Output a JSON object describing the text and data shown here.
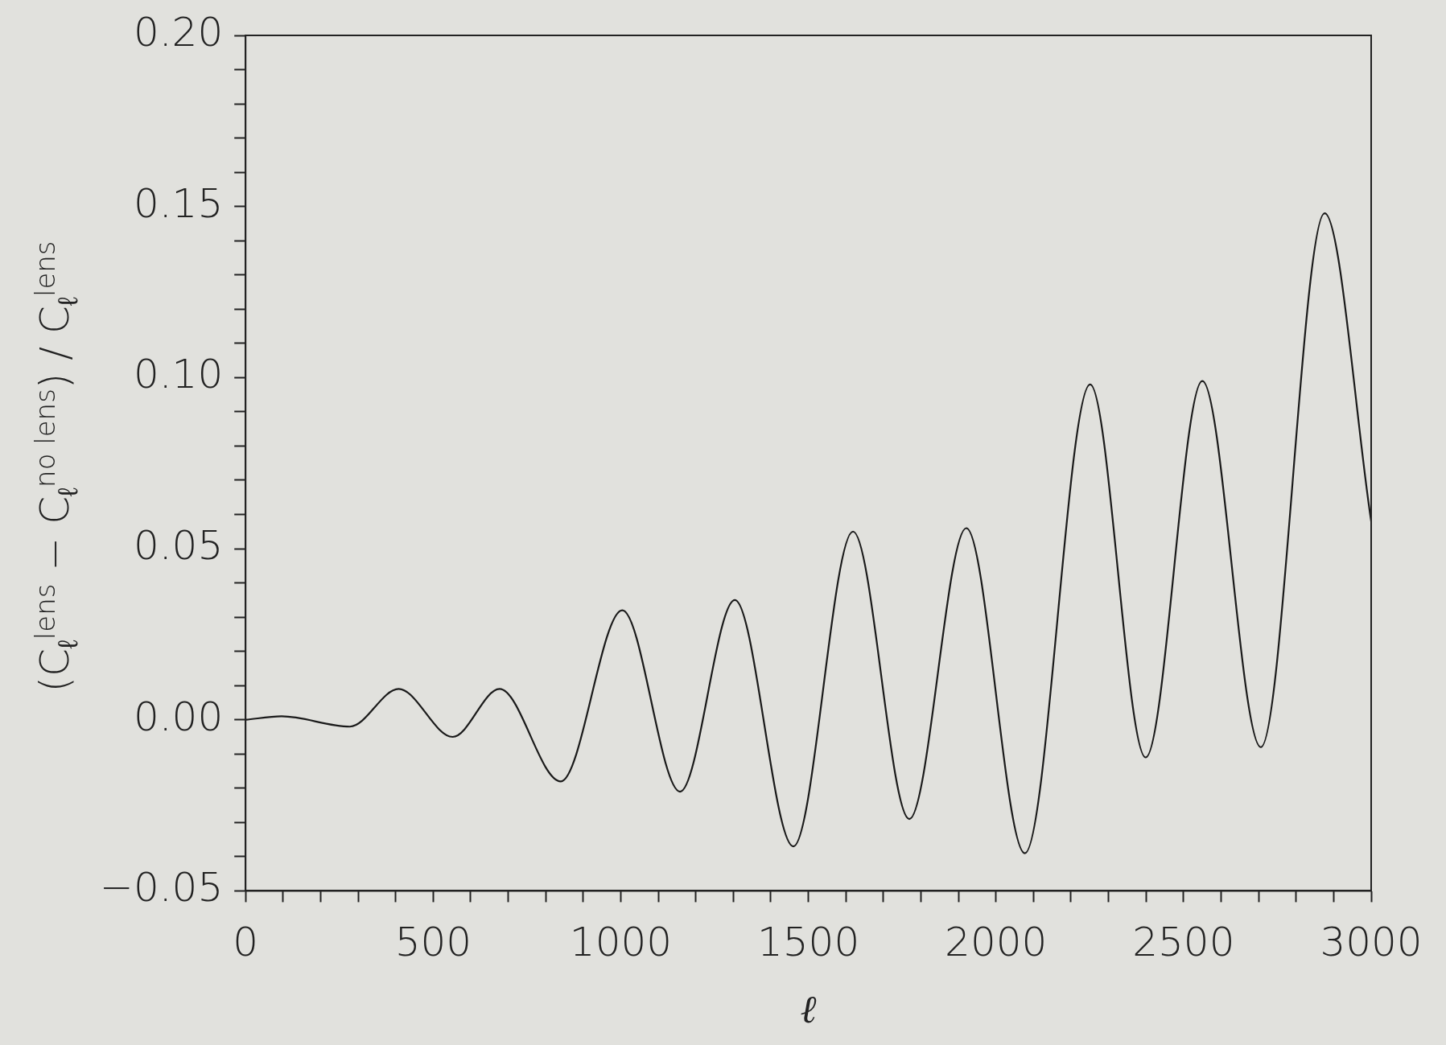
{
  "chart_data": {
    "type": "line",
    "xlabel": "ℓ",
    "ylabel": "(C$_{ℓ}$$^{lens}$ − C$_{ℓ}$$^{no lens}$) / C$_{ℓ}$$^{lens}$",
    "x": [
      0,
      96,
      278,
      408,
      552,
      677,
      840,
      1004,
      1158,
      1304,
      1460,
      1619,
      1769,
      1921,
      2077,
      2251,
      2399,
      2550,
      2706,
      2876,
      3000
    ],
    "series": [
      {
        "color": "#1a1a1a",
        "values": [
          0.0,
          0.001,
          -0.002,
          0.009,
          -0.005,
          0.009,
          -0.018,
          0.032,
          -0.021,
          0.035,
          -0.037,
          0.055,
          -0.029,
          0.056,
          -0.039,
          0.098,
          -0.011,
          0.099,
          -0.008,
          0.148,
          0.058
        ]
      }
    ],
    "xlim": [
      0,
      3000
    ],
    "ylim": [
      -0.05,
      0.2
    ],
    "xticks": [
      0,
      {
        "value": 100,
        "label": null
      },
      {
        "value": 200,
        "label": null
      },
      {
        "value": 300,
        "label": null
      },
      {
        "value": 400,
        "label": null
      },
      500,
      {
        "value": 600,
        "label": null
      },
      {
        "value": 700,
        "label": null
      },
      {
        "value": 800,
        "label": null
      },
      {
        "value": 900,
        "label": null
      },
      1000,
      {
        "value": 1100,
        "label": null
      },
      {
        "value": 1200,
        "label": null
      },
      {
        "value": 1300,
        "label": null
      },
      {
        "value": 1400,
        "label": null
      },
      1500,
      {
        "value": 1600,
        "label": null
      },
      {
        "value": 1700,
        "label": null
      },
      {
        "value": 1800,
        "label": null
      },
      {
        "value": 1900,
        "label": null
      },
      2000,
      {
        "value": 2100,
        "label": null
      },
      {
        "value": 2200,
        "label": null
      },
      {
        "value": 2300,
        "label": null
      },
      {
        "value": 2400,
        "label": null
      },
      2500,
      {
        "value": 2600,
        "label": null
      },
      {
        "value": 2700,
        "label": null
      },
      {
        "value": 2800,
        "label": null
      },
      {
        "value": 2900,
        "label": null
      },
      3000
    ],
    "yticks": [
      {
        "value": -0.05,
        "label": "−0.05"
      },
      {
        "value": -0.04,
        "label": null
      },
      {
        "value": -0.03,
        "label": null
      },
      {
        "value": -0.02,
        "label": null
      },
      {
        "value": -0.01,
        "label": null
      },
      {
        "value": 0,
        "label": "0.00"
      },
      {
        "value": 0.01,
        "label": null
      },
      {
        "value": 0.02,
        "label": null
      },
      {
        "value": 0.03,
        "label": null
      },
      {
        "value": 0.04,
        "label": null
      },
      {
        "value": 0.05,
        "label": "0.05"
      },
      {
        "value": 0.06,
        "label": null
      },
      {
        "value": 0.07,
        "label": null
      },
      {
        "value": 0.08,
        "label": null
      },
      {
        "value": 0.09,
        "label": null
      },
      {
        "value": 0.1,
        "label": "0.10"
      },
      {
        "value": 0.11,
        "label": null
      },
      {
        "value": 0.12,
        "label": null
      },
      {
        "value": 0.13,
        "label": null
      },
      {
        "value": 0.14,
        "label": null
      },
      {
        "value": 0.15,
        "label": "0.15"
      },
      {
        "value": 0.16,
        "label": null
      },
      {
        "value": 0.17,
        "label": null
      },
      {
        "value": 0.18,
        "label": null
      },
      {
        "value": 0.19,
        "label": null
      },
      {
        "value": 0.2,
        "label": "0.20"
      }
    ],
    "grid": false,
    "legend": false,
    "marker": "none",
    "line_style": "solid"
  }
}
